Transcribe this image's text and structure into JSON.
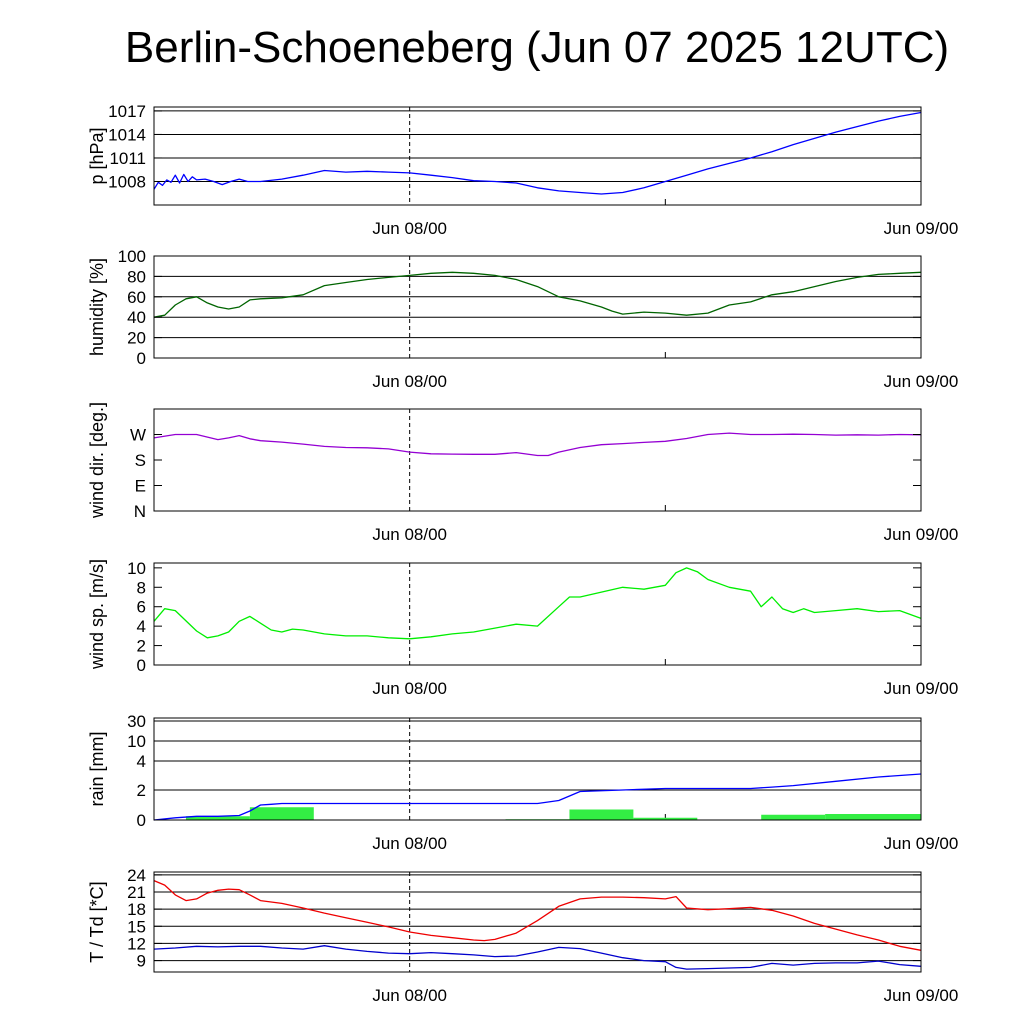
{
  "title": "Berlin-Schoeneberg (Jun 07 2025 12UTC)",
  "chart_data": [
    {
      "id": "pressure",
      "type": "line",
      "ylabel": "p [hPa]",
      "xlabel": "",
      "x_unit": "hours since Jun 07 2025 12UTC",
      "xlim": [
        0,
        36
      ],
      "x_ticks": [
        {
          "x": 12,
          "label": "Jun 08/00"
        },
        {
          "x": 36,
          "label": "Jun 09/00"
        }
      ],
      "ylim": [
        1005,
        1017.5
      ],
      "y_ticks": [
        {
          "v": 1008,
          "label": "1008"
        },
        {
          "v": 1011,
          "label": "1011"
        },
        {
          "v": 1014,
          "label": "1014"
        },
        {
          "v": 1017,
          "label": "1017"
        }
      ],
      "grid": true,
      "series": [
        {
          "name": "",
          "kind": "line",
          "color": "#0000ff",
          "x": [
            0,
            0.2,
            0.4,
            0.6,
            0.8,
            1.0,
            1.2,
            1.4,
            1.6,
            1.8,
            2.0,
            2.4,
            2.8,
            3.2,
            3.6,
            4.0,
            4.4,
            5.0,
            6.0,
            7.0,
            8.0,
            9.0,
            10.0,
            11.0,
            12.0,
            13.0,
            14.0,
            15.0,
            16.0,
            17.0,
            18.0,
            19.0,
            20.0,
            21.0,
            22.0,
            23.0,
            24.0,
            25.0,
            26.0,
            27.0,
            28.0,
            29.0,
            30.0,
            31.0,
            32.0,
            33.0,
            34.0,
            35.0,
            36.0
          ],
          "values": [
            1007.0,
            1007.9,
            1007.5,
            1008.2,
            1007.9,
            1008.8,
            1007.8,
            1008.9,
            1008.0,
            1008.6,
            1008.2,
            1008.3,
            1008.0,
            1007.6,
            1008.0,
            1008.3,
            1008.0,
            1008.0,
            1008.3,
            1008.8,
            1009.4,
            1009.2,
            1009.3,
            1009.2,
            1009.1,
            1008.8,
            1008.5,
            1008.1,
            1008.0,
            1007.8,
            1007.2,
            1006.8,
            1006.6,
            1006.4,
            1006.6,
            1007.2,
            1008.0,
            1008.8,
            1009.6,
            1010.3,
            1011.0,
            1011.8,
            1012.7,
            1013.5,
            1014.3,
            1015.0,
            1015.7,
            1016.3,
            1016.8
          ]
        }
      ]
    },
    {
      "id": "humidity",
      "type": "line",
      "ylabel": "humidity [%]",
      "xlabel": "",
      "x_unit": "hours since Jun 07 2025 12UTC",
      "xlim": [
        0,
        36
      ],
      "x_ticks": [
        {
          "x": 12,
          "label": "Jun 08/00"
        },
        {
          "x": 36,
          "label": "Jun 09/00"
        }
      ],
      "ylim": [
        0,
        100
      ],
      "y_ticks": [
        {
          "v": 0,
          "label": "0"
        },
        {
          "v": 20,
          "label": "20"
        },
        {
          "v": 40,
          "label": "40"
        },
        {
          "v": 60,
          "label": "60"
        },
        {
          "v": 80,
          "label": "80"
        },
        {
          "v": 100,
          "label": "100"
        }
      ],
      "grid": true,
      "series": [
        {
          "name": "",
          "kind": "line",
          "color": "#006400",
          "x": [
            0,
            0.5,
            1,
            1.5,
            2,
            2.5,
            3,
            3.5,
            4,
            4.5,
            5,
            6,
            7,
            8,
            9,
            10,
            11,
            12,
            13,
            14,
            15,
            16,
            17,
            18,
            19,
            20,
            21,
            21.5,
            22,
            23,
            24,
            25,
            26,
            27,
            28,
            29,
            30,
            31,
            32,
            33,
            34,
            35,
            36
          ],
          "values": [
            40,
            42,
            52,
            58,
            60,
            54,
            50,
            48,
            50,
            57,
            58,
            59,
            62,
            71,
            74,
            77,
            79,
            81,
            83,
            84,
            83,
            81,
            77,
            70,
            60,
            56,
            50,
            46,
            43,
            45,
            44,
            42,
            44,
            52,
            55,
            62,
            65,
            70,
            75,
            79,
            82,
            83,
            84
          ]
        }
      ]
    },
    {
      "id": "wind-direction",
      "type": "line",
      "ylabel": "wind dir. [deg.]",
      "xlabel": "",
      "x_unit": "hours since Jun 07 2025 12UTC",
      "xlim": [
        0,
        36
      ],
      "x_ticks": [
        {
          "x": 12,
          "label": "Jun 08/00"
        },
        {
          "x": 36,
          "label": "Jun 09/00"
        }
      ],
      "ylim": [
        0,
        360
      ],
      "y_ticks": [
        {
          "v": 0,
          "label": "N"
        },
        {
          "v": 90,
          "label": "E"
        },
        {
          "v": 180,
          "label": "S"
        },
        {
          "v": 270,
          "label": "W"
        }
      ],
      "grid": false,
      "series": [
        {
          "name": "",
          "kind": "line",
          "color": "#9400d3",
          "x": [
            0,
            1,
            1.5,
            2,
            3,
            3.5,
            4,
            4.5,
            5,
            6,
            7,
            8,
            9,
            10,
            11,
            12,
            13,
            14,
            15,
            16,
            17,
            18,
            18.5,
            19,
            20,
            21,
            22,
            23,
            24,
            25,
            26,
            27,
            28,
            29,
            30,
            31,
            32,
            33,
            34,
            35,
            36
          ],
          "values": [
            258,
            270,
            270,
            270,
            252,
            258,
            266,
            255,
            248,
            243,
            236,
            228,
            224,
            223,
            219,
            208,
            202,
            201,
            200,
            200,
            206,
            196,
            196,
            208,
            224,
            234,
            238,
            242,
            246,
            256,
            270,
            275,
            270,
            270,
            271,
            270,
            268,
            269,
            268,
            270,
            269
          ]
        }
      ]
    },
    {
      "id": "wind-speed",
      "type": "line",
      "ylabel": "wind sp. [m/s]",
      "xlabel": "",
      "x_unit": "hours since Jun 07 2025 12UTC",
      "xlim": [
        0,
        36
      ],
      "x_ticks": [
        {
          "x": 12,
          "label": "Jun 08/00"
        },
        {
          "x": 36,
          "label": "Jun 09/00"
        }
      ],
      "ylim": [
        0,
        10.5
      ],
      "y_ticks": [
        {
          "v": 0,
          "label": "0"
        },
        {
          "v": 2,
          "label": "2"
        },
        {
          "v": 4,
          "label": "4"
        },
        {
          "v": 6,
          "label": "6"
        },
        {
          "v": 8,
          "label": "8"
        },
        {
          "v": 10,
          "label": "10"
        }
      ],
      "grid": false,
      "series": [
        {
          "name": "",
          "kind": "line",
          "color": "#00ee00",
          "x": [
            0,
            0.5,
            1,
            2,
            2.5,
            3,
            3.5,
            4,
            4.5,
            5,
            5.5,
            6,
            6.5,
            7,
            8,
            9,
            10,
            11,
            12,
            13,
            14,
            15,
            16,
            17,
            18,
            19,
            19.5,
            20,
            21,
            22,
            23,
            24,
            24.5,
            25,
            25.5,
            26,
            27,
            28,
            28.5,
            29,
            29.5,
            30,
            30.5,
            31,
            32,
            33,
            34,
            35,
            36
          ],
          "values": [
            4.5,
            5.8,
            5.6,
            3.5,
            2.8,
            3.0,
            3.4,
            4.5,
            5.0,
            4.3,
            3.6,
            3.4,
            3.7,
            3.6,
            3.2,
            3.0,
            3.0,
            2.8,
            2.7,
            2.9,
            3.2,
            3.4,
            3.8,
            4.2,
            4.0,
            6.0,
            7.0,
            7.0,
            7.5,
            8.0,
            7.8,
            8.2,
            9.5,
            10.0,
            9.6,
            8.8,
            8.0,
            7.6,
            6.0,
            7.0,
            5.8,
            5.4,
            5.8,
            5.4,
            5.6,
            5.8,
            5.5,
            5.6,
            4.8
          ]
        }
      ]
    },
    {
      "id": "rain",
      "type": "bar",
      "ylabel": "rain [mm]",
      "xlabel": "",
      "x_unit": "hours since Jun 07 2025 12UTC",
      "xlim": [
        0,
        36
      ],
      "x_ticks": [
        {
          "x": 12,
          "label": "Jun 08/00"
        },
        {
          "x": 36,
          "label": "Jun 09/00"
        }
      ],
      "y_scale": "nonlinear",
      "y_ticks": [
        {
          "v": 0,
          "label": "0"
        },
        {
          "v": 2,
          "label": "2"
        },
        {
          "v": 4,
          "label": "4"
        },
        {
          "v": 10,
          "label": "10"
        },
        {
          "v": 30,
          "label": "30"
        }
      ],
      "grid": true,
      "series": [
        {
          "name": "",
          "kind": "bar",
          "color": "#33ee44",
          "x_start": [
            1.5,
            4.5,
            16.5,
            19.5,
            22.5,
            28.5,
            31.5
          ],
          "x_end": [
            4.5,
            7.5,
            19.5,
            22.5,
            25.5,
            31.5,
            36.0
          ],
          "values": [
            0.25,
            0.85,
            0.05,
            0.7,
            0.15,
            0.35,
            0.4
          ]
        },
        {
          "name": "",
          "kind": "line",
          "color": "#0000ff",
          "x": [
            0,
            1,
            2,
            3,
            4,
            4.5,
            5,
            5.5,
            6,
            7,
            10,
            13,
            16,
            18,
            19,
            19.5,
            20,
            22,
            24,
            26,
            28,
            29,
            30,
            32,
            34,
            35,
            36
          ],
          "values": [
            0,
            0.15,
            0.25,
            0.25,
            0.3,
            0.6,
            1.0,
            1.05,
            1.1,
            1.1,
            1.1,
            1.1,
            1.1,
            1.1,
            1.3,
            1.6,
            1.9,
            2.0,
            2.1,
            2.1,
            2.1,
            2.2,
            2.3,
            2.6,
            2.9,
            3.0,
            3.1
          ]
        }
      ]
    },
    {
      "id": "temperature",
      "type": "line",
      "ylabel": "T / Td [*C]",
      "xlabel": "",
      "x_unit": "hours since Jun 07 2025 12UTC",
      "xlim": [
        0,
        36
      ],
      "x_ticks": [
        {
          "x": 12,
          "label": "Jun 08/00"
        },
        {
          "x": 36,
          "label": "Jun 09/00"
        }
      ],
      "ylim": [
        7,
        24.5
      ],
      "y_ticks": [
        {
          "v": 9,
          "label": "9"
        },
        {
          "v": 12,
          "label": "12"
        },
        {
          "v": 15,
          "label": "15"
        },
        {
          "v": 18,
          "label": "18"
        },
        {
          "v": 21,
          "label": "21"
        },
        {
          "v": 24,
          "label": "24"
        }
      ],
      "grid": true,
      "series": [
        {
          "name": "",
          "kind": "line",
          "color": "#ee0000",
          "x": [
            0,
            0.5,
            1,
            1.5,
            2,
            2.5,
            3,
            3.5,
            4,
            4.5,
            5,
            6,
            7,
            8,
            9,
            10,
            11,
            12,
            13,
            14,
            15,
            15.5,
            16,
            17,
            18,
            19,
            20,
            21,
            22,
            23,
            24,
            24.5,
            25,
            26,
            27,
            28,
            29,
            30,
            31,
            32,
            33,
            34,
            35,
            36
          ],
          "values": [
            23.0,
            22.2,
            20.5,
            19.5,
            19.8,
            20.8,
            21.3,
            21.5,
            21.4,
            20.5,
            19.5,
            19.0,
            18.2,
            17.3,
            16.5,
            15.7,
            14.9,
            14.0,
            13.4,
            13.0,
            12.6,
            12.5,
            12.7,
            13.8,
            16.0,
            18.5,
            19.8,
            20.1,
            20.1,
            20.0,
            19.8,
            20.2,
            18.2,
            17.9,
            18.1,
            18.3,
            17.8,
            16.8,
            15.5,
            14.5,
            13.5,
            12.6,
            11.5,
            10.8
          ]
        },
        {
          "name": "",
          "kind": "line",
          "color": "#0000cc",
          "x": [
            0,
            1,
            2,
            3,
            4,
            5,
            6,
            7,
            8,
            9,
            10,
            11,
            12,
            13,
            14,
            15,
            16,
            17,
            18,
            19,
            20,
            21,
            22,
            23,
            24,
            24.5,
            25,
            26,
            27,
            28,
            29,
            30,
            31,
            32,
            33,
            34,
            35,
            36
          ],
          "values": [
            11.0,
            11.2,
            11.5,
            11.4,
            11.5,
            11.5,
            11.2,
            11.0,
            11.6,
            11.0,
            10.6,
            10.3,
            10.2,
            10.4,
            10.2,
            10.0,
            9.7,
            9.8,
            10.5,
            11.3,
            11.1,
            10.3,
            9.5,
            9.0,
            8.8,
            7.8,
            7.5,
            7.6,
            7.7,
            7.8,
            8.5,
            8.2,
            8.5,
            8.6,
            8.6,
            8.9,
            8.3,
            8.0
          ]
        }
      ]
    }
  ]
}
